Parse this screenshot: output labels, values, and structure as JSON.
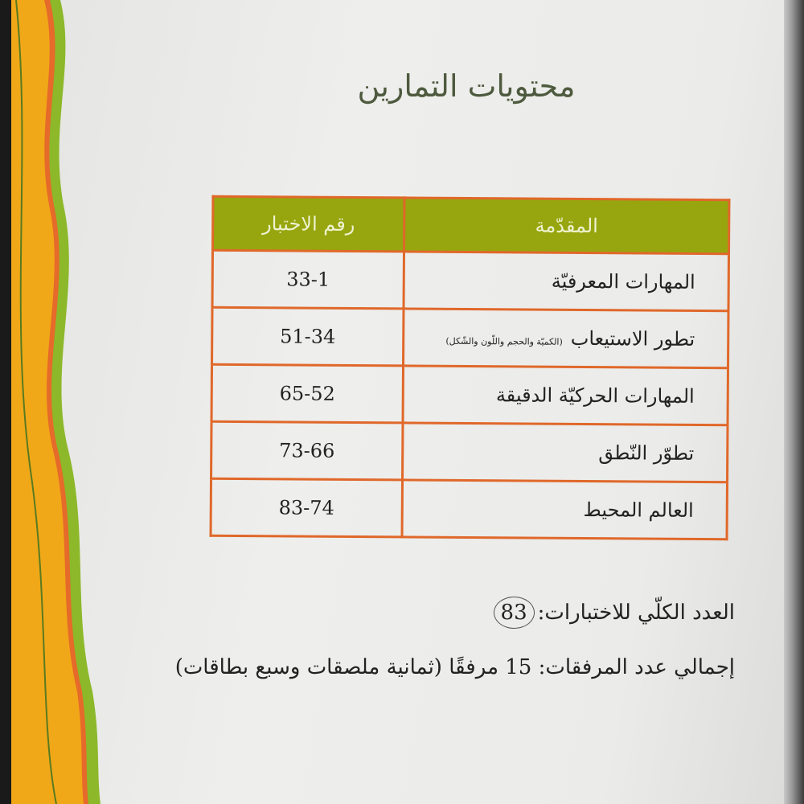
{
  "title": "محتويات التمارين",
  "table": {
    "headers": [
      "المقدّمة",
      "رقم الاختبار"
    ],
    "rows": [
      {
        "label": "المهارات المعرفيّة",
        "note": "",
        "range": "33-1"
      },
      {
        "label": "تطور الاستيعاب",
        "note": "(الكميّة والحجم واللّون والشّكل)",
        "range": "51-34"
      },
      {
        "label": "المهارات الحركيّة الدقيقة",
        "note": "",
        "range": "65-52"
      },
      {
        "label": "تطوّر النّطق",
        "note": "",
        "range": "73-66"
      },
      {
        "label": "العالم المحيط",
        "note": "",
        "range": "83-74"
      }
    ]
  },
  "total_tests": {
    "label": "العدد الكلّي للاختبارات:",
    "value": "83"
  },
  "attachments": "إجمالي عدد المرفقات: 15 مرفقًا (ثمانية ملصقات وسبع بطاقات)",
  "colors": {
    "header": "#97a60e",
    "border": "#e0682a",
    "strip": "#f0a818",
    "scallop": "#8cb82a"
  }
}
